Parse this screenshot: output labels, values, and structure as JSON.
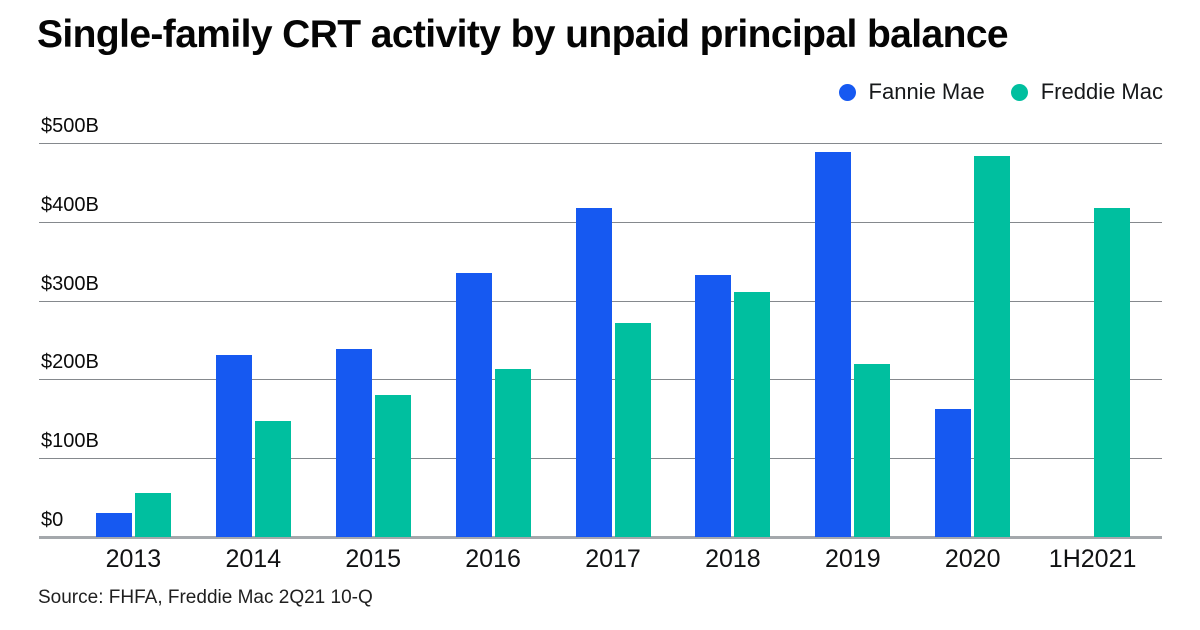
{
  "title": "Single-family CRT activity by unpaid principal balance",
  "source_note": "Source: FHFA, Freddie Mac 2Q21 10-Q",
  "colors": {
    "fannie_mae": "#1659F1",
    "freddie_mac": "#00BF9F",
    "gridline": "#85898d",
    "axis_line": "#a4a8ac"
  },
  "legend": {
    "position": "top-right",
    "items": [
      {
        "label": "Fannie Mae",
        "color": "#1659F1"
      },
      {
        "label": "Freddie Mac",
        "color": "#00BF9F"
      }
    ]
  },
  "chart_data": {
    "type": "bar",
    "title": "Single-family CRT activity by unpaid principal balance",
    "xlabel": "",
    "ylabel": "",
    "units": "$ billions (unpaid principal balance)",
    "categories": [
      "2013",
      "2014",
      "2015",
      "2016",
      "2017",
      "2018",
      "2019",
      "2020",
      "1H2021"
    ],
    "series": [
      {
        "name": "Fannie Mae",
        "color": "#1659F1",
        "values": [
          31,
          231,
          239,
          335,
          417,
          332,
          488,
          163,
          null
        ]
      },
      {
        "name": "Freddie Mac",
        "color": "#00BF9F",
        "values": [
          56,
          147,
          180,
          213,
          272,
          311,
          219,
          484,
          418
        ]
      }
    ],
    "ylim": [
      0,
      500
    ],
    "y_ticks": [
      {
        "value": 500,
        "label": "$500B"
      },
      {
        "value": 400,
        "label": "$400B"
      },
      {
        "value": 300,
        "label": "$300B"
      },
      {
        "value": 200,
        "label": "$200B"
      },
      {
        "value": 100,
        "label": "$100B"
      },
      {
        "value": 0,
        "label": "$0"
      }
    ],
    "grid": "horizontal",
    "legend_position": "top-right"
  }
}
